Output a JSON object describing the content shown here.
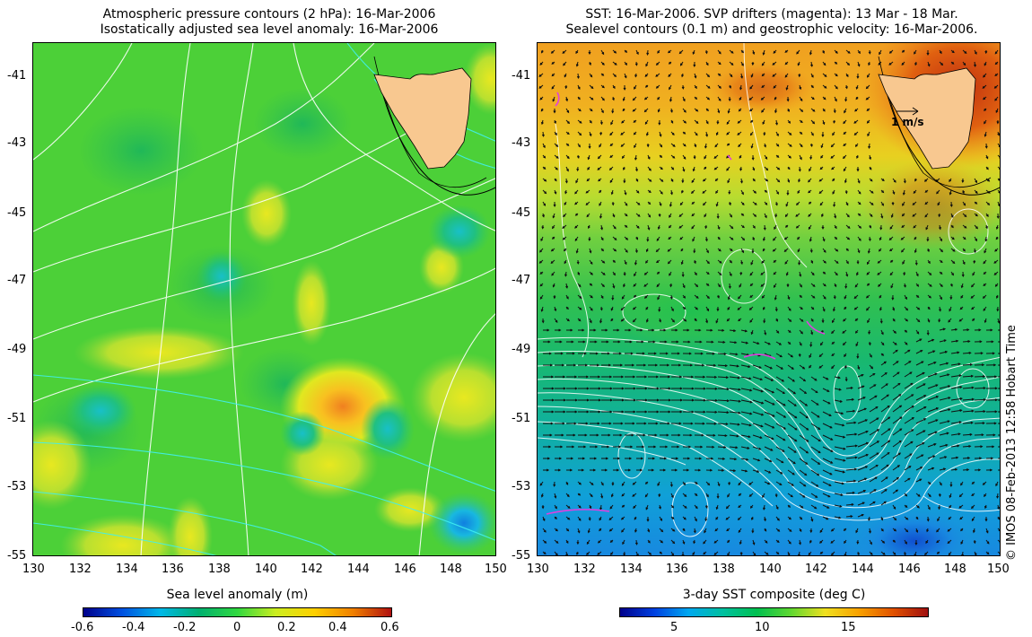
{
  "left_panel": {
    "title_line1": "Atmospheric pressure contours (2 hPa): 16-Mar-2006",
    "title_line2": "Isostatically adjusted sea level anomaly: 16-Mar-2006",
    "lat_ticks": [
      "-41",
      "-43",
      "-45",
      "-47",
      "-49",
      "-51",
      "-53",
      "-55"
    ],
    "lon_ticks": [
      "130",
      "132",
      "134",
      "136",
      "138",
      "140",
      "142",
      "144",
      "146",
      "148",
      "150"
    ],
    "colorbar": {
      "title": "Sea level anomaly (m)",
      "range": [
        -0.6,
        0.6
      ],
      "labels": [
        "-0.6",
        "-0.4",
        "-0.2",
        "0",
        "0.2",
        "0.4",
        "0.6"
      ],
      "colors": [
        "#00008b",
        "#0050e0",
        "#00b8e8",
        "#00b070",
        "#30d840",
        "#ccee20",
        "#ffd000",
        "#f08000",
        "#b01010"
      ]
    }
  },
  "right_panel": {
    "title_line1": "SST: 16-Mar-2006. SVP drifters (magenta): 13 Mar - 18 Mar.",
    "title_line2": "Sealevel contours (0.1 m) and geostrophic velocity: 16-Mar-2006.",
    "lat_ticks": [
      "-41",
      "-43",
      "-45",
      "-47",
      "-49",
      "-51",
      "-53",
      "-55"
    ],
    "lon_ticks": [
      "130",
      "132",
      "134",
      "136",
      "138",
      "140",
      "142",
      "144",
      "146",
      "148",
      "150"
    ],
    "velocity_scale_label": "1 m/s",
    "colorbar": {
      "title": "3-day SST composite (deg C)",
      "range": [
        2,
        20
      ],
      "labels": [
        "5",
        "10",
        "15"
      ],
      "label_values": [
        5,
        10,
        15
      ],
      "colors": [
        "#00008b",
        "#0040e0",
        "#00a8f0",
        "#00c0a0",
        "#00c050",
        "#60d830",
        "#f0e020",
        "#f8a000",
        "#e05000",
        "#a01010"
      ]
    }
  },
  "credit": "© IMOS 08-Feb-2013 12:58 Hobart Time",
  "land": {
    "name": "Tasmania",
    "color": "#f8c890"
  }
}
